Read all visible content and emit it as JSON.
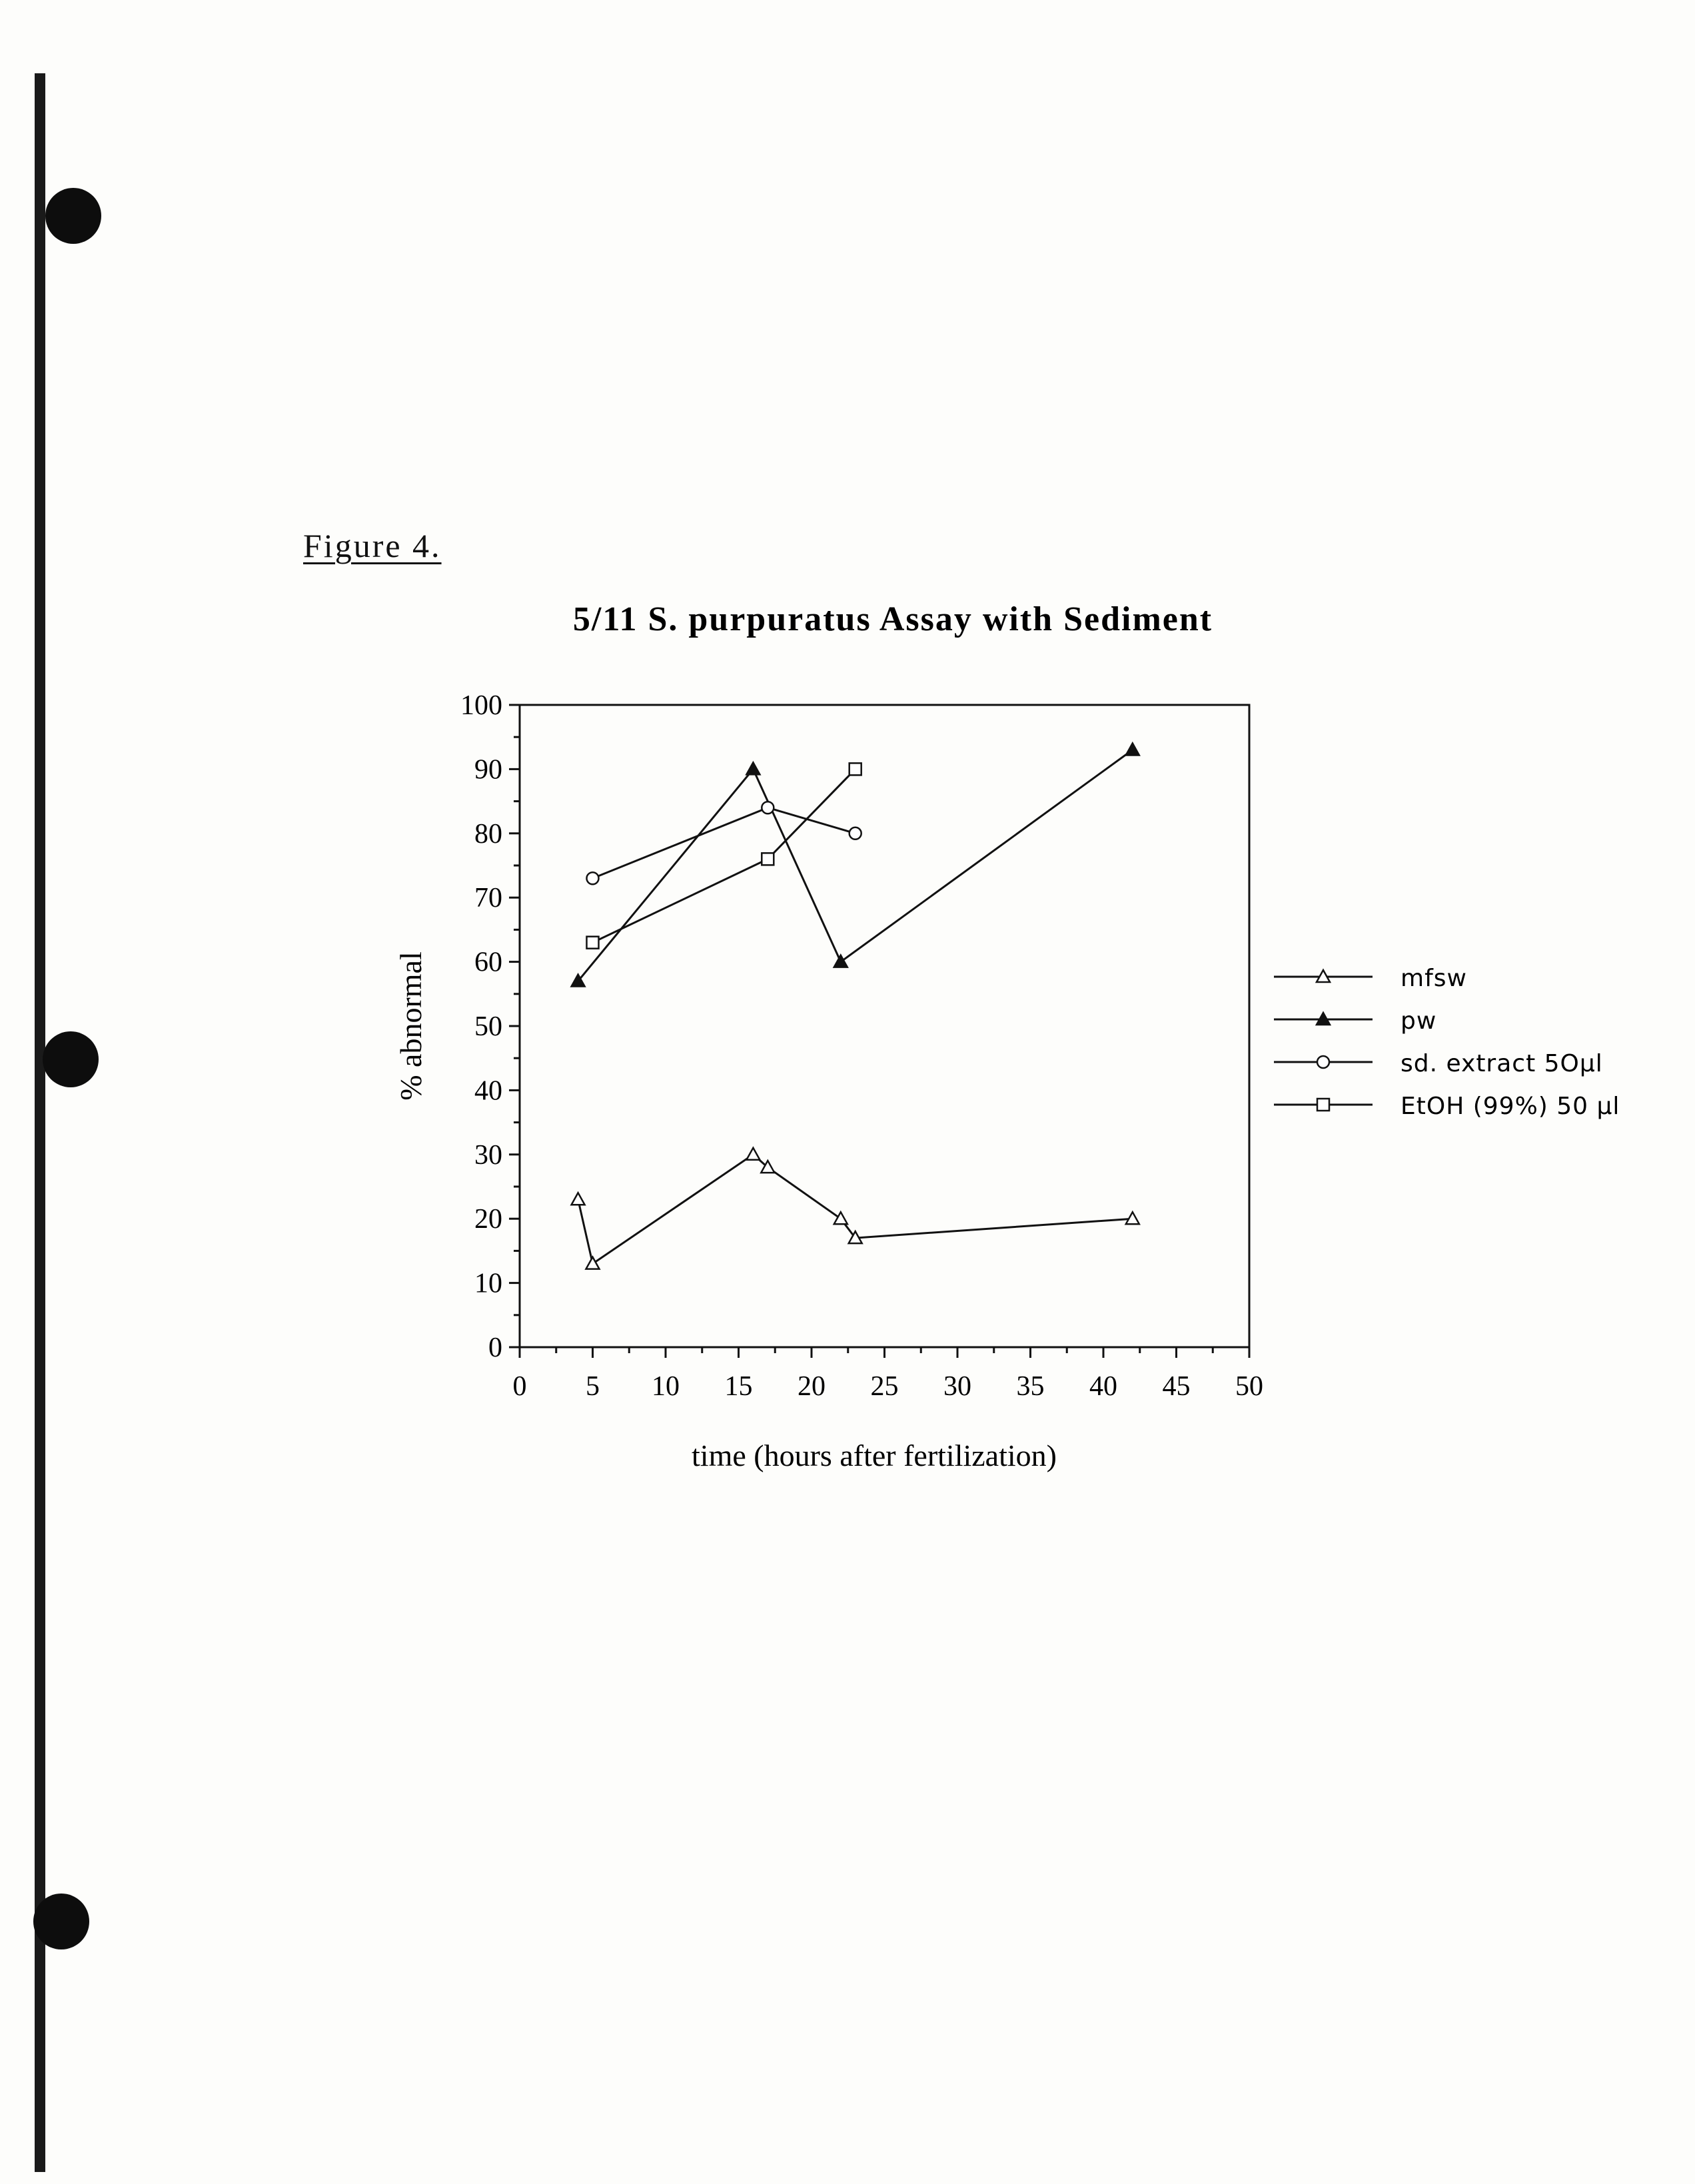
{
  "figure_label": "Figure 4.",
  "chart_data": {
    "type": "line",
    "title": "5/11 S. purpuratus Assay with Sediment",
    "xlabel": "time (hours after fertilization)",
    "ylabel": "% abnormal",
    "xlim": [
      0,
      50
    ],
    "ylim": [
      0,
      100
    ],
    "x_ticks": [
      0,
      5,
      10,
      15,
      20,
      25,
      30,
      35,
      40,
      45,
      50
    ],
    "y_ticks": [
      0,
      10,
      20,
      30,
      40,
      50,
      60,
      70,
      80,
      90,
      100
    ],
    "grid": false,
    "legend_position": "right",
    "series": [
      {
        "name": "mfsw",
        "marker": "open-triangle",
        "x": [
          4,
          5,
          16,
          17,
          22,
          23,
          42
        ],
        "y": [
          23,
          13,
          30,
          28,
          20,
          17,
          20
        ]
      },
      {
        "name": "pw",
        "marker": "filled-triangle",
        "x": [
          4,
          16,
          22,
          42
        ],
        "y": [
          57,
          90,
          60,
          93
        ]
      },
      {
        "name": "sd. extract 5Oμl",
        "marker": "open-circle",
        "x": [
          5,
          17,
          23
        ],
        "y": [
          73,
          84,
          80
        ]
      },
      {
        "name": "EtOH (99%) 50 μl",
        "marker": "open-square",
        "x": [
          5,
          17,
          23
        ],
        "y": [
          63,
          76,
          90
        ]
      }
    ]
  }
}
